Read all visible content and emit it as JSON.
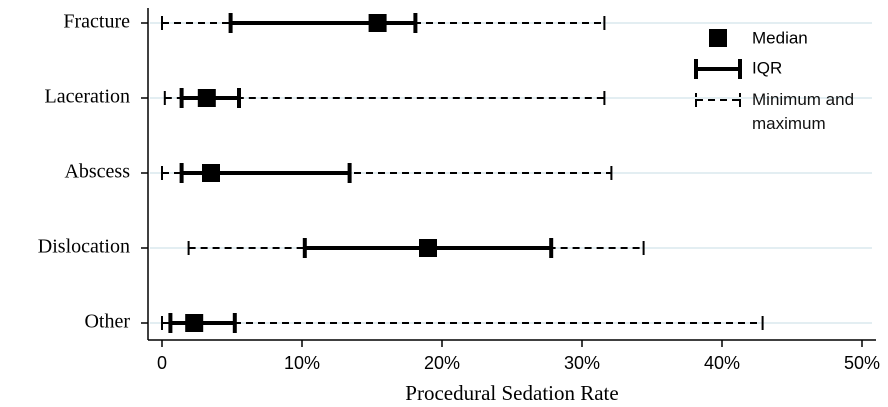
{
  "chart_data": {
    "type": "range",
    "x_label": "Procedural Sedation Rate",
    "categories": [
      "Fracture",
      "Laceration",
      "Abscess",
      "Dislocation",
      "Other"
    ],
    "median": [
      15.4,
      3.2,
      3.5,
      19.0,
      2.3
    ],
    "q1": [
      4.9,
      1.4,
      1.4,
      10.2,
      0.6
    ],
    "q3": [
      18.1,
      5.5,
      13.4,
      27.8,
      5.2
    ],
    "min": [
      0,
      0.2,
      0,
      1.9,
      0
    ],
    "max": [
      31.6,
      31.6,
      32.1,
      34.4,
      42.9
    ],
    "color": "#000000",
    "grid_color": "#e3eef2",
    "legend": [
      "Median",
      "IQR",
      "Minimum and maximum"
    ],
    "xlim": [
      -1,
      51
    ],
    "xticks": [
      0,
      {
        "value": 10,
        "label": "10%"
      },
      {
        "value": 20,
        "label": "20%"
      },
      {
        "value": 30,
        "label": "30%"
      },
      {
        "value": 40,
        "label": "40%"
      },
      {
        "value": 50,
        "label": "50%"
      }
    ],
    "grid": true
  }
}
